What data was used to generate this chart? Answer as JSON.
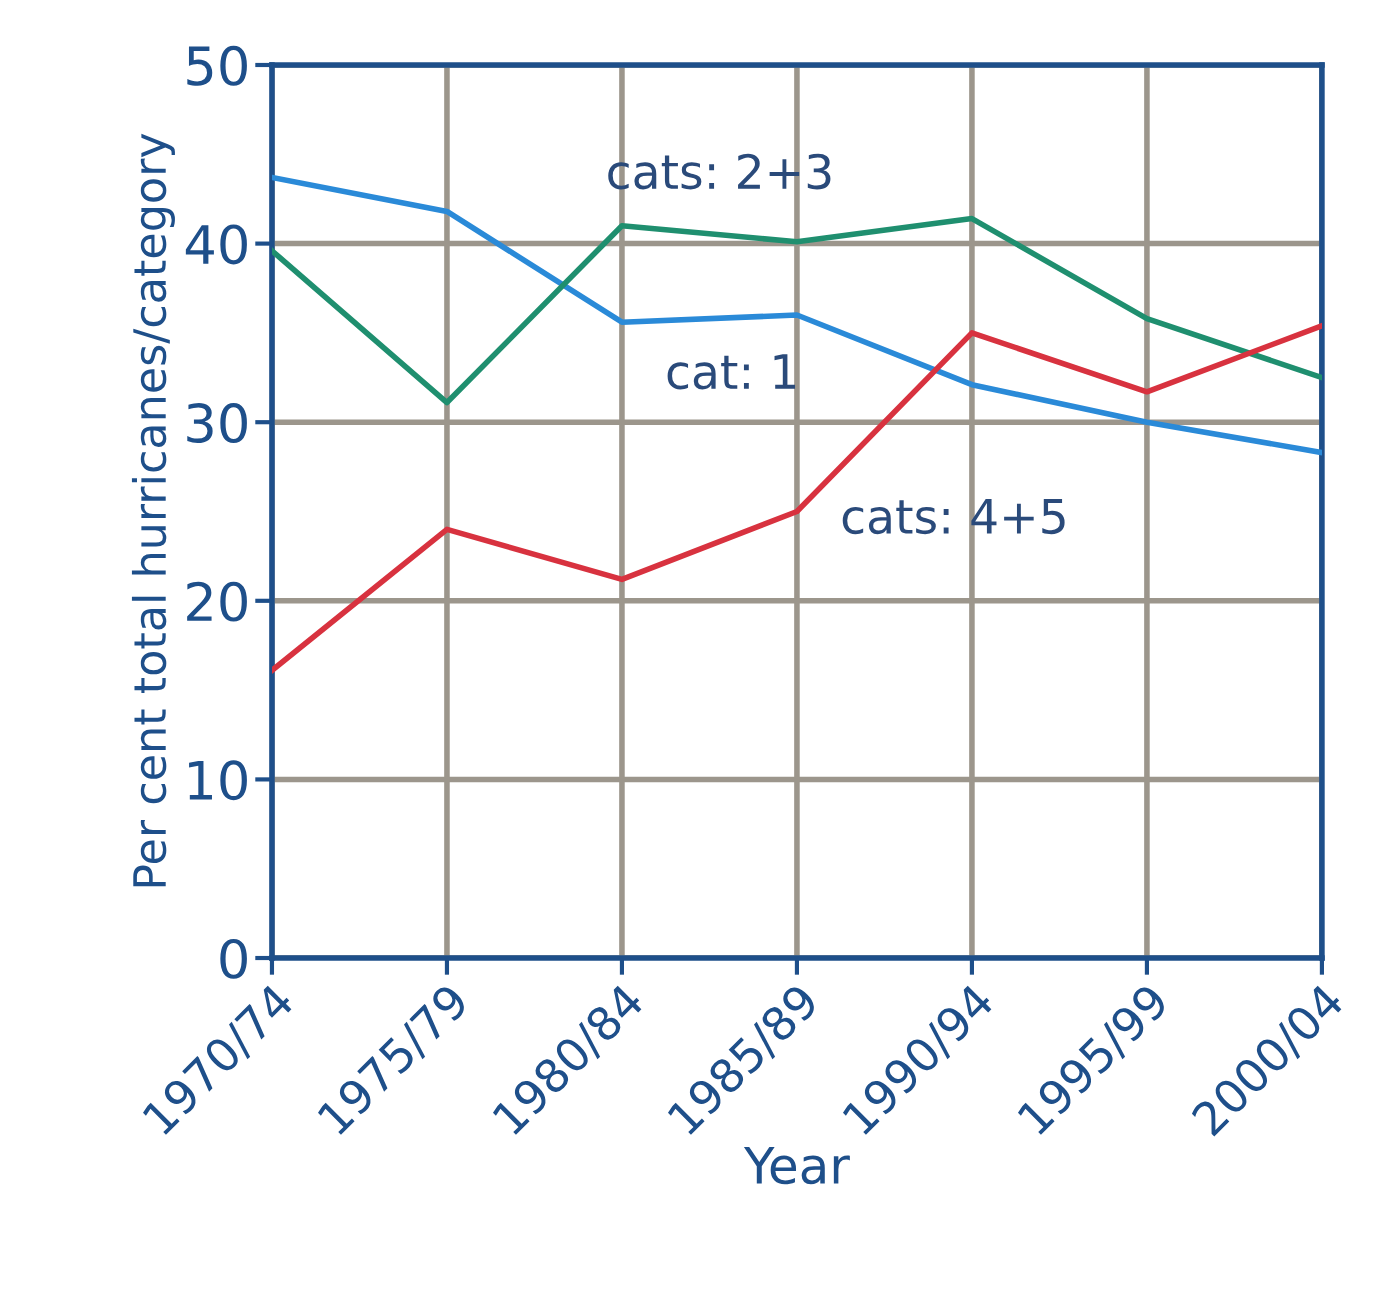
{
  "chart_data": {
    "type": "line",
    "xlabel": "Year",
    "ylabel": "Per cent total hurricanes/category",
    "categories": [
      "1970/74",
      "1975/79",
      "1980/84",
      "1985/89",
      "1990/94",
      "1995/99",
      "2000/04"
    ],
    "series": [
      {
        "name": "cat: 1",
        "color": "#2a8ad8",
        "values": [
          43.7,
          41.8,
          35.6,
          36.0,
          32.1,
          30.0,
          28.3
        ]
      },
      {
        "name": "cats: 2+3",
        "color": "#1f8f6f",
        "values": [
          39.6,
          31.1,
          41.0,
          40.1,
          41.4,
          35.8,
          32.5
        ]
      },
      {
        "name": "cats: 4+5",
        "color": "#d8323f",
        "values": [
          16.1,
          24.0,
          21.2,
          25.0,
          35.0,
          31.7,
          35.4
        ]
      }
    ],
    "ylim": [
      0,
      50
    ],
    "yticks": [
      0,
      10,
      20,
      30,
      40,
      50
    ],
    "grid": true,
    "legend": false,
    "marker": "none",
    "line_style": "solid"
  }
}
